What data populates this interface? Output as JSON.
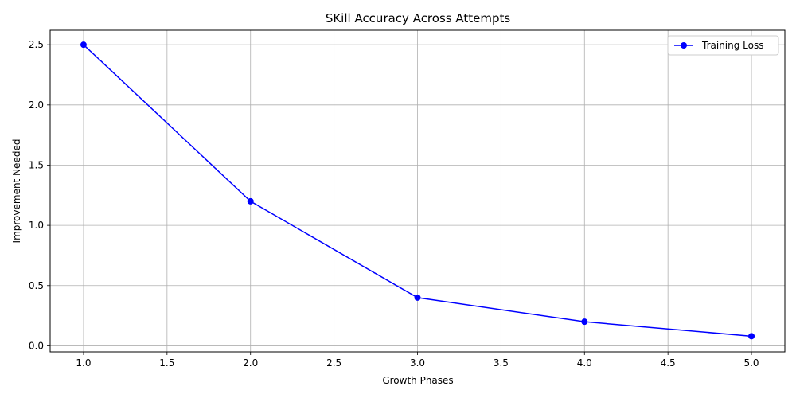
{
  "chart_data": {
    "type": "line",
    "title": "SKill Accuracy Across Attempts",
    "xlabel": "Growth Phases",
    "ylabel": "Improvement Needed",
    "xlim": [
      0.8,
      5.2
    ],
    "ylim": [
      -0.05,
      2.62
    ],
    "xticks": [
      1.0,
      1.5,
      2.0,
      2.5,
      3.0,
      3.5,
      4.0,
      4.5,
      5.0
    ],
    "yticks": [
      0.0,
      0.5,
      1.0,
      1.5,
      2.0,
      2.5
    ],
    "grid": true,
    "legend_position": "top-right",
    "series": [
      {
        "name": "Training Loss",
        "color": "#0000ff",
        "marker": "circle",
        "x": [
          1,
          2,
          3,
          4,
          5
        ],
        "values": [
          2.5,
          1.2,
          0.4,
          0.2,
          0.08
        ]
      }
    ]
  }
}
